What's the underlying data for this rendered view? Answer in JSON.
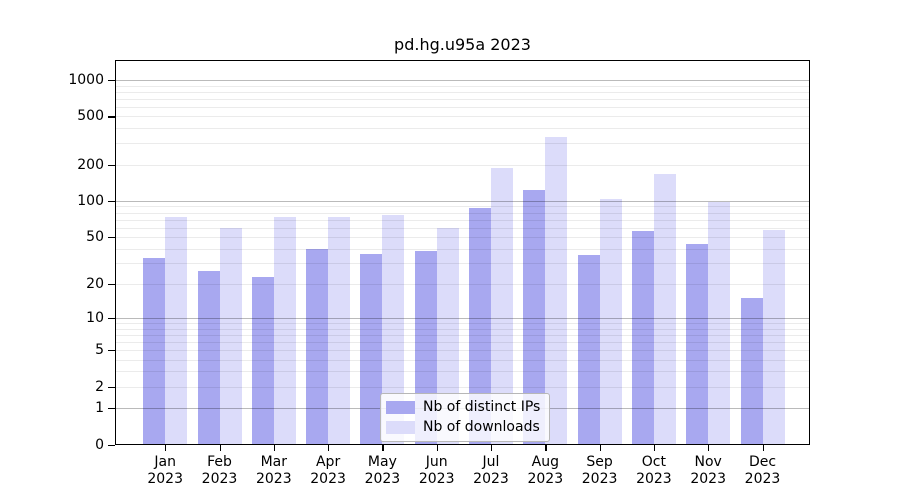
{
  "title": "pd.hg.u95a 2023",
  "legend": {
    "items": [
      {
        "label": "Nb of distinct IPs",
        "color": "#a8a8f0"
      },
      {
        "label": "Nb of downloads",
        "color": "#dcdcfa"
      }
    ]
  },
  "y_axis": {
    "tick_labels": [
      "0",
      "1",
      "2",
      "5",
      "10",
      "20",
      "50",
      "100",
      "200",
      "500",
      "1000"
    ]
  },
  "chart_data": {
    "type": "bar",
    "title": "pd.hg.u95a 2023",
    "xlabel": "",
    "ylabel": "",
    "yscale": "log1p",
    "ylim": [
      0,
      1460
    ],
    "grid": "on",
    "legend_position": "inside-bottom-center",
    "yticks": [
      0,
      1,
      2,
      5,
      10,
      20,
      50,
      100,
      200,
      500,
      1000
    ],
    "categories": [
      {
        "month": "Jan",
        "year": "2023"
      },
      {
        "month": "Feb",
        "year": "2023"
      },
      {
        "month": "Mar",
        "year": "2023"
      },
      {
        "month": "Apr",
        "year": "2023"
      },
      {
        "month": "May",
        "year": "2023"
      },
      {
        "month": "Jun",
        "year": "2023"
      },
      {
        "month": "Jul",
        "year": "2023"
      },
      {
        "month": "Aug",
        "year": "2023"
      },
      {
        "month": "Sep",
        "year": "2023"
      },
      {
        "month": "Oct",
        "year": "2023"
      },
      {
        "month": "Nov",
        "year": "2023"
      },
      {
        "month": "Dec",
        "year": "2023"
      }
    ],
    "series": [
      {
        "name": "Nb of distinct IPs",
        "color": "#a8a8f0",
        "values": [
          33,
          26,
          23,
          40,
          36,
          38,
          87,
          123,
          35,
          56,
          44,
          15
        ]
      },
      {
        "name": "Nb of downloads",
        "color": "#dcdcfa",
        "values": [
          74,
          60,
          74,
          73,
          76,
          60,
          189,
          340,
          103,
          168,
          98,
          57
        ]
      }
    ]
  }
}
